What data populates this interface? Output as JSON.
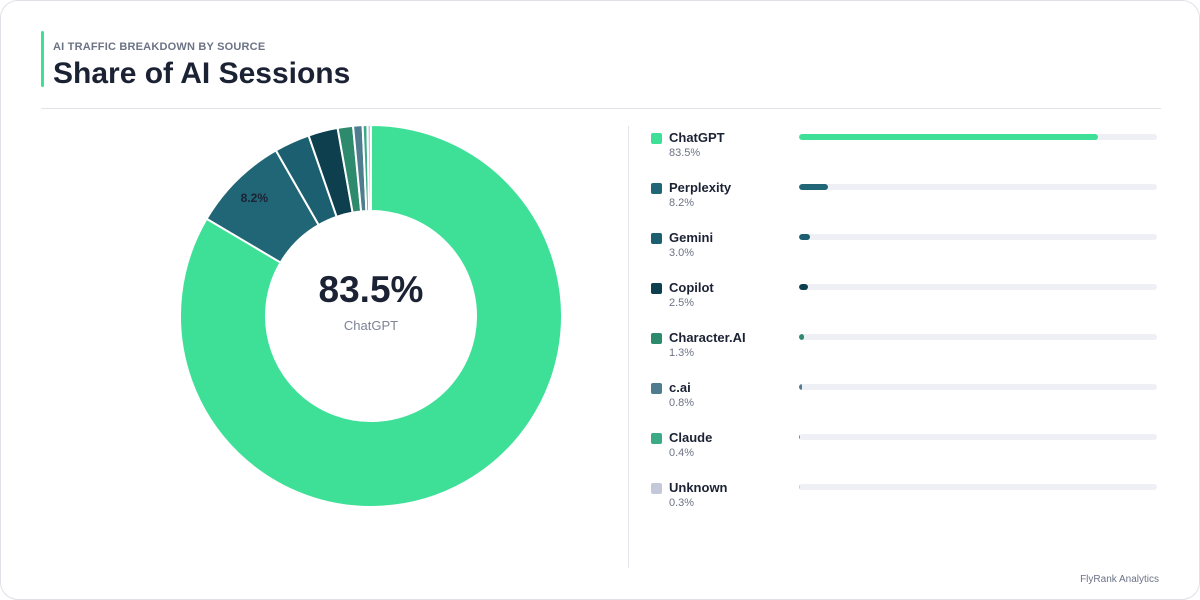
{
  "header": {
    "kicker": "AI TRAFFIC BREAKDOWN BY SOURCE",
    "title": "Share of AI Sessions"
  },
  "center": {
    "value": "83.5%",
    "label": "ChatGPT"
  },
  "footer": {
    "brand": "FlyRank Analytics"
  },
  "chart_data": {
    "type": "pie",
    "title": "Share of AI Sessions",
    "subtitle": "AI TRAFFIC BREAKDOWN BY SOURCE",
    "categories": [
      "ChatGPT",
      "Perplexity",
      "Gemini",
      "Copilot",
      "Character.AI",
      "c.ai",
      "Claude",
      "Unknown"
    ],
    "values": [
      83.5,
      8.2,
      3.0,
      2.5,
      1.3,
      0.8,
      0.4,
      0.3
    ],
    "labels": [
      "83.5%",
      "8.2%",
      "3.0%",
      "2.5%",
      "1.3%",
      "0.8%",
      "0.4%",
      "0.3%"
    ],
    "colors": [
      "#3ee098",
      "#216677",
      "#1b5f70",
      "#0e3f4f",
      "#2d8a6c",
      "#4f7d8f",
      "#3aab86",
      "#c3c9d9"
    ],
    "slice_label": "8.2%",
    "donut": true
  }
}
